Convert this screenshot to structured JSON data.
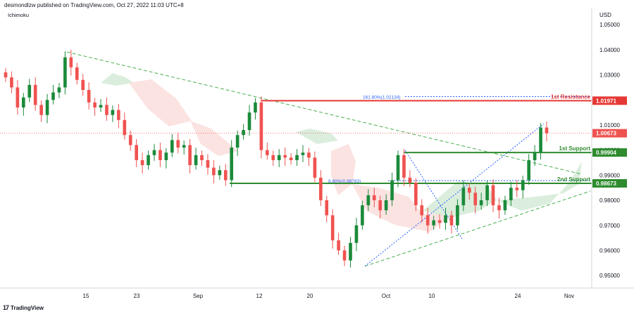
{
  "header": {
    "publish_info": "desmondlzw published on TradingView.com, Oct 27, 2022 11:03 UTC+8",
    "indicator": "Ichimoku",
    "currency": "USD"
  },
  "footer": {
    "logo_mark": "17",
    "brand": "TradingView"
  },
  "colors": {
    "up_candle": "#26a69a",
    "candle_up_dark": "#1b8a3a",
    "down_candle": "#ef5350",
    "resistance_line": "#e53935",
    "support_line": "#2e8b2e",
    "trendline": "#4caf50",
    "fib_line": "#2962ff",
    "cloud_green": "#d7ecd9",
    "cloud_red": "#fbe0df",
    "current_price_line": "#ef5350"
  },
  "chart_data": {
    "type": "candlestick",
    "symbol_currency": "USD",
    "ylim": [
      0.945,
      1.0565
    ],
    "y_ticks": [
      "1.05000",
      "1.04000",
      "1.03000",
      "1.02000",
      "1.01000",
      "1.00000",
      "0.99000",
      "0.98000",
      "0.97000",
      "0.96000",
      "0.95000"
    ],
    "x_ticks": [
      "15",
      "23",
      "Sep",
      "12",
      "20",
      "Oct",
      "10",
      "24",
      "Nov"
    ],
    "levels": [
      {
        "label": "1st Resistance",
        "value": 1.01971,
        "price_text": "1.01971",
        "kind": "resistance"
      },
      {
        "label": "1st Support",
        "value": 0.99904,
        "price_text": "0.99904",
        "kind": "support"
      },
      {
        "label": "2nd Support",
        "value": 0.98673,
        "price_text": "0.98673",
        "kind": "support"
      }
    ],
    "current_price": {
      "value": 1.00673,
      "text": "1.00673"
    },
    "fib_annotations": [
      {
        "text": "161.80%(1.02134)",
        "value": 1.02134
      },
      {
        "text": "8.80%(0.98783)",
        "value": 0.98783
      }
    ],
    "close_series": [
      1.029,
      1.025,
      1.017,
      1.021,
      1.026,
      1.018,
      1.014,
      1.02,
      1.023,
      1.025,
      1.037,
      1.033,
      1.028,
      1.024,
      1.019,
      1.017,
      1.018,
      1.014,
      1.016,
      1.012,
      1.006,
      1.002,
      0.996,
      0.994,
      0.998,
      1.0,
      0.996,
      0.999,
      1.004,
      1.001,
      1.002,
      0.994,
      0.998,
      0.996,
      0.993,
      0.99,
      0.992,
      0.988,
      1.001,
      1.006,
      1.008,
      1.015,
      1.019,
      1.0,
      0.998,
      0.996,
      0.998,
      0.997,
      0.996,
      0.998,
      0.999,
      0.997,
      0.989,
      0.98,
      0.974,
      0.964,
      0.96,
      0.956,
      0.963,
      0.97,
      0.978,
      0.982,
      0.98,
      0.976,
      0.98,
      0.988,
      0.998,
      0.989,
      0.987,
      0.978,
      0.974,
      0.97,
      0.972,
      0.971,
      0.974,
      0.97,
      0.978,
      0.985,
      0.983,
      0.978,
      0.98,
      0.986,
      0.978,
      0.976,
      0.98,
      0.985,
      0.984,
      0.988,
      0.996,
      0.999,
      1.009,
      1.0067
    ],
    "title": "",
    "xlabel": "",
    "ylabel": ""
  }
}
